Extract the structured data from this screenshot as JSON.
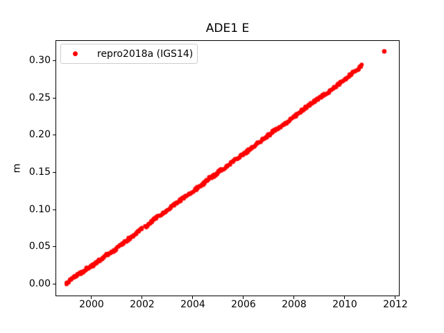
{
  "chart_data": {
    "type": "scatter",
    "title": "ADE1 E",
    "xlabel": "",
    "ylabel": "m",
    "xlim": [
      1998.576,
      2012.165
    ],
    "ylim": [
      -0.017,
      0.3284
    ],
    "xticks": [
      2000,
      2002,
      2004,
      2006,
      2008,
      2010,
      2012
    ],
    "xticklabels": [
      "2000",
      "2002",
      "2004",
      "2006",
      "2008",
      "2010",
      "2012"
    ],
    "yticks": [
      0.0,
      0.05,
      0.1,
      0.15,
      0.2,
      0.25,
      0.3
    ],
    "yticklabels": [
      "0.00",
      "0.05",
      "0.10",
      "0.15",
      "0.20",
      "0.25",
      "0.30"
    ],
    "grid": false,
    "background_color": "#ffffff",
    "axis_color": "#000000",
    "legend": {
      "position": "upper left",
      "entries": [
        {
          "label": "repro2018a (IGS14)",
          "color": "#ff0000",
          "marker": "dot"
        }
      ]
    },
    "series": [
      {
        "name": "repro2018a (IGS14)",
        "color": "#ff0000",
        "marker": "dot",
        "marker_px": 6,
        "trend_points": [
          [
            1999.0,
            -0.001
          ],
          [
            1999.06,
            0.001
          ],
          [
            1999.12,
            0.004
          ],
          [
            1999.2,
            0.006
          ],
          [
            1999.32,
            0.01
          ],
          [
            1999.45,
            0.012
          ],
          [
            1999.6,
            0.015
          ],
          [
            1999.75,
            0.019
          ],
          [
            1999.9,
            0.022
          ],
          [
            2000.05,
            0.025
          ],
          [
            2000.2,
            0.029
          ],
          [
            2000.4,
            0.034
          ],
          [
            2000.6,
            0.039
          ],
          [
            2000.8,
            0.043
          ],
          [
            2000.9,
            0.044
          ],
          [
            2001.05,
            0.05
          ],
          [
            2001.25,
            0.055
          ],
          [
            2001.45,
            0.06
          ],
          [
            2001.65,
            0.065
          ],
          [
            2001.85,
            0.071
          ],
          [
            2002.0,
            0.074
          ],
          [
            2002.15,
            0.077
          ],
          [
            2002.35,
            0.083
          ],
          [
            2002.6,
            0.09
          ],
          [
            2002.85,
            0.096
          ],
          [
            2003.1,
            0.102
          ],
          [
            2003.35,
            0.109
          ],
          [
            2003.6,
            0.115
          ],
          [
            2003.85,
            0.121
          ],
          [
            2004.1,
            0.127
          ],
          [
            2004.35,
            0.133
          ],
          [
            2004.6,
            0.141
          ],
          [
            2004.85,
            0.146
          ],
          [
            2005.1,
            0.153
          ],
          [
            2005.35,
            0.158
          ],
          [
            2005.6,
            0.165
          ],
          [
            2005.85,
            0.171
          ],
          [
            2006.1,
            0.177
          ],
          [
            2006.35,
            0.184
          ],
          [
            2006.6,
            0.19
          ],
          [
            2006.85,
            0.196
          ],
          [
            2007.05,
            0.202
          ],
          [
            2007.2,
            0.206
          ],
          [
            2007.45,
            0.211
          ],
          [
            2007.7,
            0.217
          ],
          [
            2007.95,
            0.224
          ],
          [
            2008.2,
            0.23
          ],
          [
            2008.45,
            0.237
          ],
          [
            2008.7,
            0.243
          ],
          [
            2008.95,
            0.249
          ],
          [
            2009.2,
            0.255
          ],
          [
            2009.45,
            0.261
          ],
          [
            2009.7,
            0.267
          ],
          [
            2009.95,
            0.274
          ],
          [
            2010.15,
            0.279
          ],
          [
            2010.35,
            0.285
          ],
          [
            2010.5,
            0.288
          ],
          [
            2010.68,
            0.295
          ]
        ],
        "gaps": [
          [
            2002.02,
            2002.1
          ]
        ],
        "outliers": [
          [
            2011.56,
            0.313
          ]
        ],
        "scatter_band_m": 0.003
      }
    ]
  }
}
